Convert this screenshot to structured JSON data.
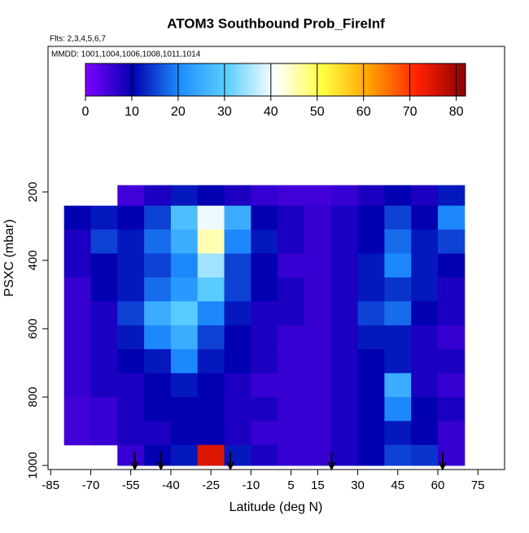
{
  "chart_data": {
    "type": "heatmap",
    "title": "ATOM3 Southbound Prob_FireInf",
    "subtitle": "Flts: 2,3,4,5,6,7",
    "annotation": "MMDD: 1001,1004,1006,1008,1011,1014",
    "x_label": "Latitude (deg N)",
    "y_label": "PSXC (mbar)",
    "xlim": [
      -86,
      85
    ],
    "xticks": [
      -85,
      -70,
      -55,
      -40,
      -25,
      -10,
      5,
      15,
      30,
      45,
      60,
      75
    ],
    "ylim": [
      1012,
      -226
    ],
    "yticks": [
      200,
      400,
      600,
      800,
      1000
    ],
    "zlim": [
      0,
      82
    ],
    "zticks": [
      0,
      10,
      20,
      30,
      40,
      50,
      60,
      70,
      80
    ],
    "colors": [
      "#7f00ff",
      "#0000b0",
      "#1e8fff",
      "#5fd0ff",
      "#ffffff",
      "#ffff40",
      "#ffa000",
      "#ff2000",
      "#8b0000"
    ],
    "x_edges": [
      -80,
      -70,
      -60,
      -50,
      -40,
      -30,
      -20,
      -10,
      0,
      10,
      20,
      30,
      40,
      50,
      60,
      70
    ],
    "y_edges": [
      180,
      240,
      310,
      380,
      450,
      520,
      590,
      660,
      730,
      800,
      870,
      940,
      1000
    ],
    "values": [
      [
        null,
        null,
        5,
        8,
        12,
        10,
        8,
        6,
        5,
        5,
        6,
        8,
        10,
        8,
        12
      ],
      [
        10,
        12,
        10,
        15,
        28,
        40,
        25,
        10,
        8,
        6,
        8,
        10,
        15,
        10,
        20
      ],
      [
        8,
        15,
        12,
        18,
        25,
        45,
        20,
        12,
        8,
        6,
        8,
        10,
        18,
        12,
        15
      ],
      [
        8,
        10,
        12,
        15,
        20,
        35,
        15,
        10,
        6,
        6,
        8,
        12,
        20,
        12,
        10
      ],
      [
        6,
        10,
        12,
        18,
        22,
        30,
        15,
        10,
        8,
        6,
        8,
        12,
        14,
        12,
        8
      ],
      [
        6,
        8,
        15,
        25,
        30,
        20,
        12,
        8,
        8,
        6,
        8,
        15,
        18,
        10,
        8
      ],
      [
        6,
        8,
        12,
        20,
        25,
        15,
        10,
        8,
        6,
        6,
        8,
        12,
        12,
        8,
        6
      ],
      [
        6,
        8,
        10,
        12,
        20,
        12,
        10,
        8,
        6,
        6,
        8,
        10,
        12,
        8,
        8
      ],
      [
        6,
        8,
        8,
        10,
        12,
        10,
        8,
        6,
        6,
        6,
        8,
        10,
        25,
        8,
        6
      ],
      [
        5,
        6,
        8,
        10,
        10,
        10,
        8,
        8,
        6,
        6,
        8,
        10,
        20,
        10,
        8
      ],
      [
        5,
        6,
        8,
        8,
        10,
        10,
        8,
        6,
        6,
        6,
        8,
        10,
        12,
        10,
        6
      ],
      [
        null,
        null,
        6,
        10,
        12,
        75,
        12,
        8,
        6,
        6,
        8,
        10,
        15,
        14,
        6
      ]
    ],
    "markers": [
      -53.5,
      -43.7,
      -17.7,
      20.2,
      61.8
    ]
  }
}
